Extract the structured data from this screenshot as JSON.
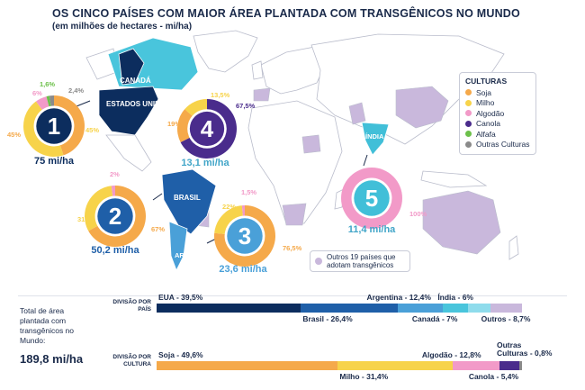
{
  "title": "OS CINCO PAÍSES COM MAIOR ÁREA PLANTADA COM TRANSGÊNICOS NO MUNDO",
  "subtitle": "(em milhões de hectares - mi/ha)",
  "colors": {
    "soja": "#f5a94a",
    "milho": "#f7d34a",
    "algodao": "#f29ac8",
    "canola": "#4a2c8c",
    "alfafa": "#6cc04a",
    "outras": "#8a8a8a",
    "other_countries": "#c9b8dc",
    "usa": "#0c2d5e",
    "canada": "#49c5dc",
    "brazil": "#1f5fa8",
    "argentina": "#4aa0d8",
    "india": "#41bfd8",
    "land": "#ffffff"
  },
  "map": {
    "labels": {
      "canada": "CANADÁ",
      "usa": "ESTADOS UNIDOS",
      "brazil": "BRASIL",
      "argentina": "ARGENTINA",
      "india": "ÍNDIA"
    }
  },
  "legend": {
    "title": "CULTURAS",
    "items": [
      {
        "name": "Soja",
        "color": "#f5a94a"
      },
      {
        "name": "Milho",
        "color": "#f7d34a"
      },
      {
        "name": "Algodão",
        "color": "#f29ac8"
      },
      {
        "name": "Canola",
        "color": "#4a2c8c"
      },
      {
        "name": "Alfafa",
        "color": "#6cc04a"
      },
      {
        "name": "Outras Culturas",
        "color": "#8a8a8a"
      }
    ]
  },
  "others_note": "Outros 19 países que adotam transgênicos",
  "total": {
    "label": "Total de área plantada com transgênicos no Mundo:",
    "value": "189,8 mi/ha"
  },
  "chart_data": [
    {
      "type": "pie",
      "rank": "1",
      "country": "EUA",
      "area": "75 mi/ha",
      "slices": [
        {
          "crop": "Soja",
          "value": 45,
          "label": "45%"
        },
        {
          "crop": "Milho",
          "value": 45,
          "label": "45%"
        },
        {
          "crop": "Algodão",
          "value": 6,
          "label": "6%"
        },
        {
          "crop": "Alfafa",
          "value": 1.6,
          "label": "1,6%"
        },
        {
          "crop": "Outras Culturas",
          "value": 2.4,
          "label": "2,4%"
        }
      ]
    },
    {
      "type": "pie",
      "rank": "2",
      "country": "Brasil",
      "area": "50,2 mi/ha",
      "slices": [
        {
          "crop": "Soja",
          "value": 67,
          "label": "67%"
        },
        {
          "crop": "Milho",
          "value": 31,
          "label": "31%"
        },
        {
          "crop": "Algodão",
          "value": 2,
          "label": "2%"
        }
      ]
    },
    {
      "type": "pie",
      "rank": "3",
      "country": "Argentina",
      "area": "23,6 mi/ha",
      "slices": [
        {
          "crop": "Soja",
          "value": 76.5,
          "label": "76,5%"
        },
        {
          "crop": "Milho",
          "value": 22,
          "label": "22%"
        },
        {
          "crop": "Algodão",
          "value": 1.5,
          "label": "1,5%"
        }
      ]
    },
    {
      "type": "pie",
      "rank": "4",
      "country": "Canadá",
      "area": "13,1 mi/ha",
      "slices": [
        {
          "crop": "Canola",
          "value": 67.5,
          "label": "67,5%"
        },
        {
          "crop": "Soja",
          "value": 19,
          "label": "19%"
        },
        {
          "crop": "Milho",
          "value": 13.5,
          "label": "13,5%"
        }
      ]
    },
    {
      "type": "pie",
      "rank": "5",
      "country": "Índia",
      "area": "11,4 mi/ha",
      "slices": [
        {
          "crop": "Algodão",
          "value": 100,
          "label": "100%"
        }
      ]
    },
    {
      "type": "bar",
      "orientation": "horizontal-stacked",
      "row_label": "DIVISÃO POR PAÍS",
      "segments": [
        {
          "name": "EUA",
          "value": 39.5,
          "label": "EUA - 39,5%",
          "color": "#0c2d5e"
        },
        {
          "name": "Brasil",
          "value": 26.4,
          "label": "Brasil - 26,4%",
          "color": "#1f5fa8"
        },
        {
          "name": "Argentina",
          "value": 12.4,
          "label": "Argentina - 12,4%",
          "color": "#4aa0d8"
        },
        {
          "name": "Canadá",
          "value": 7,
          "label": "Canadá - 7%",
          "color": "#49c5dc"
        },
        {
          "name": "Índia",
          "value": 6,
          "label": "Índia - 6%",
          "color": "#8fdcec"
        },
        {
          "name": "Outros",
          "value": 8.7,
          "label": "Outros - 8,7%",
          "color": "#c9b8dc"
        }
      ]
    },
    {
      "type": "bar",
      "orientation": "horizontal-stacked",
      "row_label": "DIVISÃO POR CULTURA",
      "segments": [
        {
          "name": "Soja",
          "value": 49.6,
          "label": "Soja - 49,6%",
          "color": "#f5a94a"
        },
        {
          "name": "Milho",
          "value": 31.4,
          "label": "Milho - 31,4%",
          "color": "#f7d34a"
        },
        {
          "name": "Algodão",
          "value": 12.8,
          "label": "Algodão - 12,8%",
          "color": "#f29ac8"
        },
        {
          "name": "Canola",
          "value": 5.4,
          "label": "Canola - 5,4%",
          "color": "#4a2c8c"
        },
        {
          "name": "Outras Culturas",
          "value": 0.8,
          "label": "Outras Culturas - 0,8%",
          "color": "#8a8a8a"
        }
      ]
    }
  ]
}
